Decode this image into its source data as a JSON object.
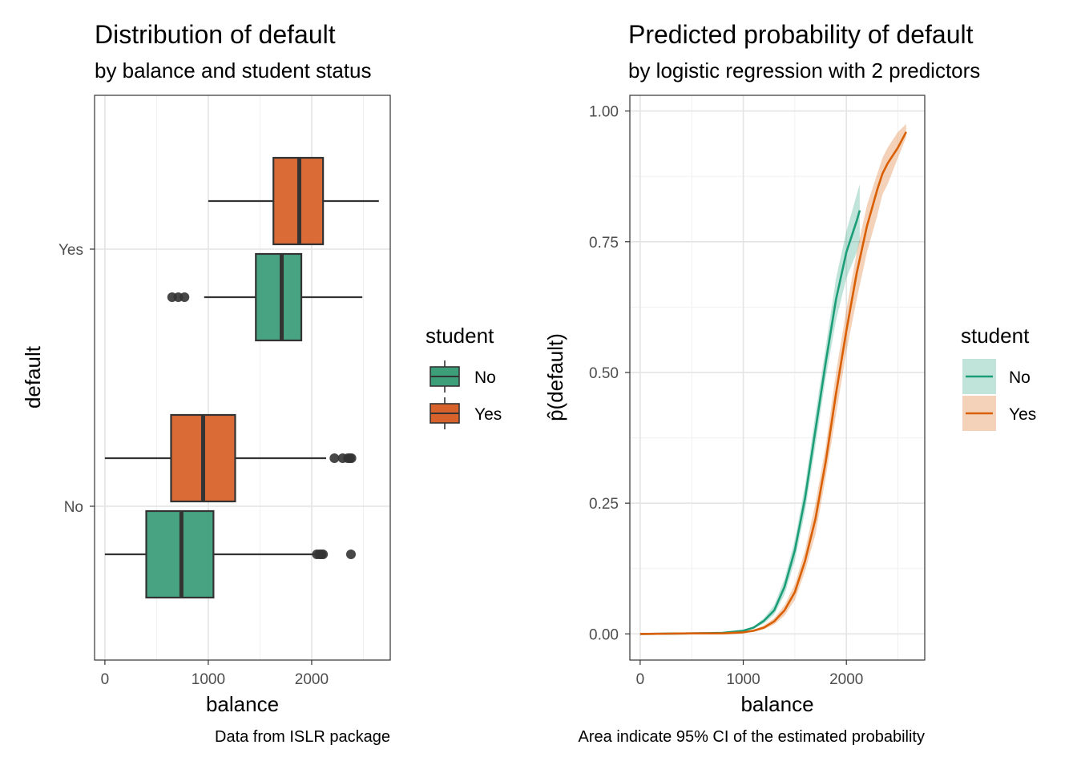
{
  "chart_data": [
    {
      "type": "boxplot",
      "title": "Distribution of default",
      "subtitle": "by balance and student status",
      "xlabel": "balance",
      "ylabel": "default",
      "caption": "Data from ISLR package",
      "xlim": [
        -100,
        2760
      ],
      "x_ticks": [
        0,
        1000,
        2000
      ],
      "x_tick_labels": [
        "0",
        "1000",
        "2000"
      ],
      "categories": [
        "No",
        "Yes"
      ],
      "legend": {
        "title": "student",
        "entries": [
          "No",
          "Yes"
        ],
        "position": "right"
      },
      "colors": {
        "No": "#3d9e7a",
        "Yes": "#d8622b"
      },
      "grid": true,
      "boxes": [
        {
          "default": "Yes",
          "student": "Yes",
          "min": 1000,
          "q1": 1630,
          "median": 1880,
          "q3": 2110,
          "max": 2650,
          "outliers": []
        },
        {
          "default": "Yes",
          "student": "No",
          "min": 960,
          "q1": 1460,
          "median": 1710,
          "q3": 1900,
          "max": 2490,
          "outliers": [
            650,
            710,
            770
          ]
        },
        {
          "default": "No",
          "student": "Yes",
          "min": 0,
          "q1": 640,
          "median": 950,
          "q3": 1260,
          "max": 2140,
          "outliers": [
            2220,
            2300,
            2350,
            2370,
            2385
          ]
        },
        {
          "default": "No",
          "student": "No",
          "min": 0,
          "q1": 400,
          "median": 740,
          "q3": 1050,
          "max": 2030,
          "outliers": [
            2050,
            2075,
            2095,
            2110,
            2380
          ]
        }
      ]
    },
    {
      "type": "line",
      "title": "Predicted probability of default",
      "subtitle": "by logistic regression with 2 predictors",
      "xlabel": "balance",
      "ylabel": "p̂(default)",
      "caption": "Area indicate 95% CI of the estimated probability",
      "xlim": [
        -100,
        2760
      ],
      "ylim": [
        -0.05,
        1.03
      ],
      "x_ticks": [
        0,
        1000,
        2000
      ],
      "x_tick_labels": [
        "0",
        "1000",
        "2000"
      ],
      "y_ticks": [
        0,
        0.25,
        0.5,
        0.75,
        1
      ],
      "y_tick_labels": [
        "0.00",
        "0.25",
        "0.50",
        "0.75",
        "1.00"
      ],
      "legend": {
        "title": "student",
        "entries": [
          "No",
          "Yes"
        ],
        "position": "right"
      },
      "colors": {
        "No": "#1b9e77",
        "Yes": "#d95f02"
      },
      "grid": true,
      "series": [
        {
          "name": "No",
          "x": [
            0,
            500,
            800,
            1000,
            1100,
            1200,
            1300,
            1400,
            1500,
            1600,
            1700,
            1800,
            1900,
            2000,
            2100,
            2130
          ],
          "y": [
            0,
            0.001,
            0.002,
            0.006,
            0.012,
            0.025,
            0.045,
            0.09,
            0.16,
            0.26,
            0.39,
            0.52,
            0.64,
            0.73,
            0.79,
            0.81
          ],
          "lower": [
            0,
            0.001,
            0.002,
            0.005,
            0.01,
            0.02,
            0.037,
            0.075,
            0.14,
            0.235,
            0.36,
            0.49,
            0.6,
            0.68,
            0.73,
            0.75
          ],
          "upper": [
            0,
            0.001,
            0.002,
            0.007,
            0.014,
            0.03,
            0.055,
            0.105,
            0.18,
            0.285,
            0.42,
            0.55,
            0.68,
            0.77,
            0.84,
            0.86
          ]
        },
        {
          "name": "Yes",
          "x": [
            0,
            500,
            800,
            1000,
            1100,
            1200,
            1300,
            1400,
            1500,
            1600,
            1700,
            1800,
            1900,
            2000,
            2100,
            2200,
            2300,
            2350,
            2400,
            2500,
            2580
          ],
          "y": [
            0,
            0.001,
            0.001,
            0.003,
            0.006,
            0.012,
            0.024,
            0.045,
            0.08,
            0.14,
            0.22,
            0.33,
            0.46,
            0.58,
            0.69,
            0.78,
            0.85,
            0.88,
            0.9,
            0.93,
            0.96
          ],
          "lower": [
            0,
            0.001,
            0.001,
            0.002,
            0.004,
            0.009,
            0.018,
            0.035,
            0.065,
            0.12,
            0.19,
            0.3,
            0.42,
            0.54,
            0.64,
            0.73,
            0.8,
            0.84,
            0.86,
            0.91,
            0.95
          ],
          "upper": [
            0,
            0.001,
            0.001,
            0.004,
            0.008,
            0.016,
            0.03,
            0.055,
            0.095,
            0.16,
            0.25,
            0.36,
            0.5,
            0.62,
            0.73,
            0.82,
            0.88,
            0.91,
            0.93,
            0.96,
            0.975
          ]
        }
      ]
    }
  ]
}
